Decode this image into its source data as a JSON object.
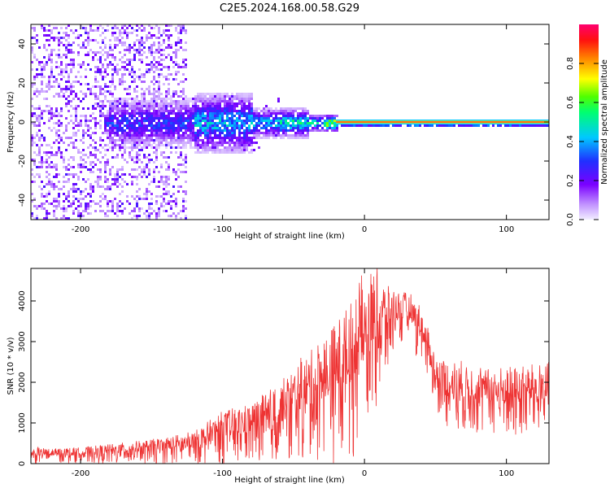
{
  "title": "C2E5.2024.168.00.58.G29",
  "chart_data": [
    {
      "type": "heatmap",
      "xlabel": "Height of straight line (km)",
      "ylabel": "Frequency (Hz)",
      "xlim": [
        -235,
        130
      ],
      "ylim": [
        -50,
        50
      ],
      "x_ticks": [
        -200,
        -100,
        0,
        100
      ],
      "y_ticks": [
        -40,
        -20,
        0,
        20,
        40
      ],
      "colorbar": {
        "label": "Normalized spectral amplitude",
        "range": [
          0,
          1
        ],
        "ticks": [
          0.0,
          0.2,
          0.4,
          0.6,
          0.8
        ],
        "colormap": [
          "#e8e0ff",
          "#b070ff",
          "#7a00ff",
          "#2020ff",
          "#00c0ff",
          "#00ff80",
          "#40ff00",
          "#ffff00",
          "#ff8000",
          "#ff0000",
          "#ff0080"
        ]
      },
      "features": {
        "noise_region_end_km": -125,
        "carrier_frequency_hz": 0,
        "carrier_max_from_km": -20
      }
    },
    {
      "type": "line",
      "xlabel": "Height of straight line (km)",
      "ylabel": "SNR (10 * v/v)",
      "xlim": [
        -235,
        130
      ],
      "ylim": [
        0,
        4800
      ],
      "x_ticks": [
        -200,
        -100,
        0,
        100
      ],
      "y_ticks": [
        0,
        1000,
        2000,
        3000,
        4000
      ],
      "series": [
        {
          "color": "#ee3333",
          "envelope_x": [
            -235,
            -200,
            -150,
            -120,
            -100,
            -80,
            -60,
            -40,
            -20,
            -10,
            0,
            10,
            20,
            30,
            40,
            50,
            60,
            80,
            100,
            130
          ],
          "envelope_low": [
            0,
            0,
            0,
            0,
            0,
            0,
            0,
            0,
            0,
            0,
            600,
            1500,
            2600,
            2900,
            2500,
            1300,
            800,
            700,
            600,
            700
          ],
          "envelope_high": [
            350,
            400,
            600,
            800,
            1300,
            1500,
            2000,
            2700,
            3500,
            4200,
            4600,
            4500,
            4300,
            4200,
            3800,
            2700,
            2500,
            2300,
            2400,
            2500
          ],
          "envelope_mean": [
            200,
            200,
            300,
            400,
            650,
            750,
            1000,
            1400,
            1800,
            2000,
            2700,
            3200,
            3500,
            3600,
            3200,
            2000,
            1700,
            1600,
            1500,
            1600
          ]
        }
      ]
    }
  ]
}
